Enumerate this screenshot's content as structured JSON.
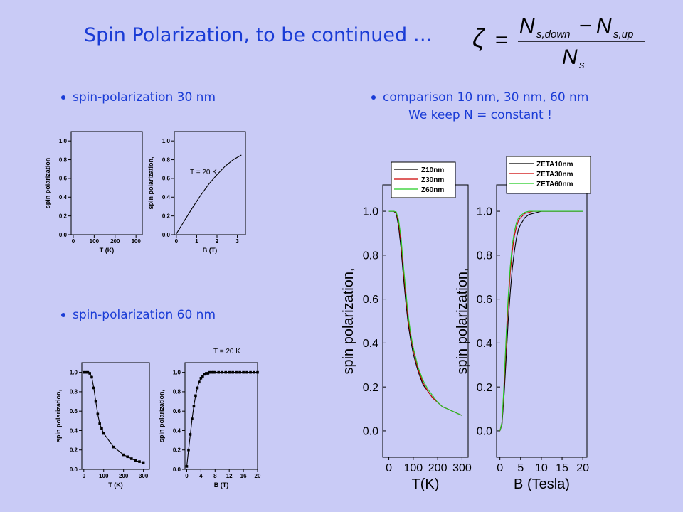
{
  "title": "Spin Polarization, to be continued …",
  "formula": {
    "lhs": "ζ",
    "num1": "N",
    "sub1": "s,down",
    "minus": "−",
    "num2": "N",
    "sub2": "s,up",
    "den": "N",
    "sub_den": "s"
  },
  "bullets": {
    "b30": "spin-polarization 30 nm",
    "b60": "spin-polarization 60 nm",
    "bcmp": "comparison 10 nm, 30 nm, 60 nm",
    "bcmp2": "We keep N = constant !"
  },
  "colors": {
    "text": "#1a3cd6",
    "bg": "#c9cbf6",
    "series": [
      "#000000",
      "#cc0000",
      "#22cc22"
    ]
  },
  "chart_data": [
    {
      "type": "line",
      "ylabel": "spin polarization",
      "xlabel": "T (K)",
      "xlim": [
        -10,
        330
      ],
      "ylim": [
        0,
        1.1
      ],
      "xticks": [
        "0",
        "100",
        "200",
        "300"
      ],
      "yticks": [
        "0.0",
        "0.2",
        "0.4",
        "0.6",
        "0.8",
        "1.0"
      ],
      "series": []
    },
    {
      "type": "line",
      "ylabel": "spin polarization,",
      "xlabel": "B (T)",
      "xlim": [
        -0.1,
        3.4
      ],
      "ylim": [
        0,
        1.1
      ],
      "xticks": [
        "0",
        "1",
        "2",
        "3"
      ],
      "yticks": [
        "0.0",
        "0.2",
        "0.4",
        "0.6",
        "0.8",
        "1.0"
      ],
      "annotation": "T = 20 K",
      "series": [
        {
          "x": [
            0,
            0.4,
            0.8,
            1.2,
            1.6,
            2.0,
            2.4,
            2.8,
            3.2
          ],
          "y": [
            0.01,
            0.15,
            0.29,
            0.42,
            0.54,
            0.64,
            0.73,
            0.8,
            0.85
          ]
        }
      ]
    },
    {
      "type": "scatter",
      "ylabel": "spin polarization,",
      "xlabel": "T (K)",
      "xlim": [
        -10,
        330
      ],
      "ylim": [
        0,
        1.1
      ],
      "xticks": [
        "0",
        "100",
        "200",
        "300"
      ],
      "yticks": [
        "0.0",
        "0.2",
        "0.4",
        "0.6",
        "0.8",
        "1.0"
      ],
      "series": [
        {
          "x": [
            0,
            10,
            20,
            30,
            40,
            50,
            60,
            70,
            80,
            90,
            100,
            150,
            200,
            220,
            240,
            260,
            280,
            300
          ],
          "y": [
            1.0,
            1.0,
            1.0,
            0.99,
            0.95,
            0.84,
            0.7,
            0.57,
            0.47,
            0.42,
            0.37,
            0.23,
            0.15,
            0.13,
            0.11,
            0.09,
            0.08,
            0.07
          ]
        }
      ]
    },
    {
      "type": "scatter",
      "ylabel": "spin polarization,",
      "xlabel": "B (T)",
      "xlim": [
        -0.5,
        20
      ],
      "ylim": [
        0,
        1.1
      ],
      "xticks": [
        "0",
        "4",
        "8",
        "12",
        "16",
        "20"
      ],
      "yticks": [
        "0.0",
        "0.2",
        "0.4",
        "0.6",
        "0.8",
        "1.0"
      ],
      "annotation": "T = 20 K",
      "series": [
        {
          "x": [
            0,
            0.5,
            1,
            1.5,
            2,
            2.5,
            3,
            3.5,
            4,
            4.5,
            5,
            5.5,
            6,
            6.5,
            7,
            7.5,
            8,
            9,
            10,
            11,
            12,
            13,
            14,
            15,
            16,
            17,
            18,
            19,
            20
          ],
          "y": [
            0.03,
            0.2,
            0.36,
            0.52,
            0.65,
            0.76,
            0.84,
            0.9,
            0.94,
            0.96,
            0.98,
            0.99,
            0.99,
            1.0,
            1.0,
            1.0,
            1.0,
            1.0,
            1.0,
            1.0,
            1.0,
            1.0,
            1.0,
            1.0,
            1.0,
            1.0,
            1.0,
            1.0,
            1.0
          ]
        }
      ]
    },
    {
      "type": "line",
      "ylabel": "spin polarization,",
      "xlabel": "T(K)",
      "xlim": [
        -25,
        325
      ],
      "ylim": [
        -0.12,
        1.12
      ],
      "xticks": [
        "0",
        "100",
        "200",
        "300"
      ],
      "yticks": [
        "0.0",
        "0.2",
        "0.4",
        "0.6",
        "0.8",
        "1.0"
      ],
      "series": [
        {
          "name": "Z10nm",
          "x": [
            0,
            10,
            20,
            30,
            40,
            50,
            60,
            70,
            80,
            90,
            100,
            120,
            140,
            160,
            180,
            200,
            220,
            240,
            260,
            280,
            300
          ],
          "y": [
            1.0,
            1.0,
            1.0,
            0.99,
            0.93,
            0.83,
            0.7,
            0.58,
            0.48,
            0.41,
            0.35,
            0.27,
            0.21,
            0.18,
            0.15,
            0.13,
            0.11,
            0.1,
            0.09,
            0.08,
            0.07
          ]
        },
        {
          "name": "Z30nm",
          "x": [
            0,
            10,
            20,
            30,
            40,
            50,
            60,
            70,
            80,
            90,
            100,
            120,
            140,
            160,
            180,
            200,
            220,
            240,
            260,
            280,
            300
          ],
          "y": [
            1.0,
            1.0,
            1.0,
            0.995,
            0.95,
            0.86,
            0.73,
            0.61,
            0.5,
            0.43,
            0.37,
            0.28,
            0.22,
            0.18,
            0.15,
            0.13,
            0.11,
            0.1,
            0.09,
            0.08,
            0.07
          ]
        },
        {
          "name": "Z60nm",
          "x": [
            0,
            10,
            20,
            30,
            40,
            50,
            60,
            70,
            80,
            90,
            100,
            120,
            140,
            160,
            180,
            200,
            220,
            240,
            260,
            280,
            300
          ],
          "y": [
            1.0,
            1.0,
            1.0,
            0.997,
            0.96,
            0.88,
            0.75,
            0.63,
            0.52,
            0.44,
            0.38,
            0.29,
            0.23,
            0.19,
            0.16,
            0.13,
            0.11,
            0.1,
            0.09,
            0.08,
            0.07
          ]
        }
      ]
    },
    {
      "type": "line",
      "ylabel": "spin polarization,",
      "xlabel": "B (Tesla)",
      "xlim": [
        -0.8,
        21
      ],
      "ylim": [
        -0.12,
        1.12
      ],
      "xticks": [
        "0",
        "5",
        "10",
        "15",
        "20"
      ],
      "yticks": [
        "0.0",
        "0.2",
        "0.4",
        "0.6",
        "0.8",
        "1.0"
      ],
      "series": [
        {
          "name": "ZETA10nm",
          "x": [
            0,
            0.5,
            1,
            1.5,
            2,
            2.5,
            3,
            3.5,
            4,
            4.5,
            5,
            6,
            7,
            8,
            9,
            10,
            12,
            14,
            16,
            18,
            20
          ],
          "y": [
            0.0,
            0.03,
            0.16,
            0.33,
            0.5,
            0.63,
            0.74,
            0.82,
            0.88,
            0.92,
            0.94,
            0.97,
            0.985,
            0.99,
            0.995,
            1.0,
            1.0,
            1.0,
            1.0,
            1.0,
            1.0
          ]
        },
        {
          "name": "ZETA30nm",
          "x": [
            0,
            0.5,
            1,
            1.5,
            2,
            2.5,
            3,
            3.5,
            4,
            4.5,
            5,
            6,
            7,
            8,
            9,
            10,
            12,
            14,
            16,
            18,
            20
          ],
          "y": [
            0.0,
            0.04,
            0.2,
            0.4,
            0.58,
            0.72,
            0.82,
            0.89,
            0.93,
            0.96,
            0.97,
            0.99,
            0.995,
            1.0,
            1.0,
            1.0,
            1.0,
            1.0,
            1.0,
            1.0,
            1.0
          ]
        },
        {
          "name": "ZETA60nm",
          "x": [
            0,
            0.5,
            1,
            1.5,
            2,
            2.5,
            3,
            3.5,
            4,
            4.5,
            5,
            6,
            7,
            8,
            9,
            10,
            12,
            14,
            16,
            18,
            20
          ],
          "y": [
            0.0,
            0.04,
            0.22,
            0.43,
            0.61,
            0.75,
            0.85,
            0.91,
            0.95,
            0.97,
            0.98,
            0.995,
            1.0,
            1.0,
            1.0,
            1.0,
            1.0,
            1.0,
            1.0,
            1.0,
            1.0
          ]
        }
      ]
    }
  ]
}
